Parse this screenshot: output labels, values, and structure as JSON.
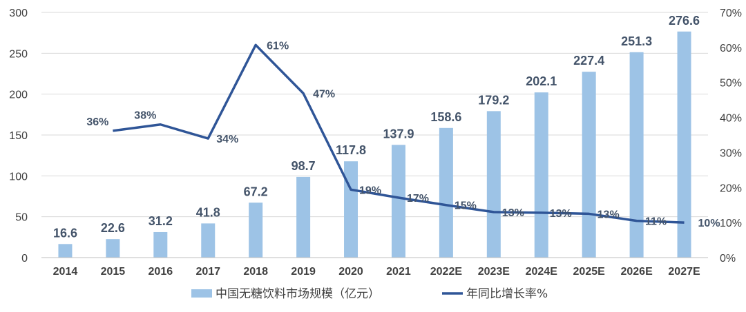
{
  "chart_data": {
    "type": "bar+line",
    "categories": [
      "2014",
      "2015",
      "2016",
      "2017",
      "2018",
      "2019",
      "2020",
      "2021",
      "2022E",
      "2023E",
      "2024E",
      "2025E",
      "2026E",
      "2027E"
    ],
    "series": [
      {
        "name": "中国无糖饮料市场规模（亿元）",
        "type": "bar",
        "axis": "left",
        "values": [
          16.6,
          22.6,
          31.2,
          41.8,
          67.2,
          98.7,
          117.8,
          137.9,
          158.6,
          179.2,
          202.1,
          227.4,
          251.3,
          276.6
        ],
        "labels": [
          "16.6",
          "22.6",
          "31.2",
          "41.8",
          "67.2",
          "98.7",
          "117.8",
          "137.9",
          "158.6",
          "179.2",
          "202.1",
          "227.4",
          "251.3",
          "276.6"
        ],
        "color": "#9dc3e6"
      },
      {
        "name": "年同比增长率%",
        "type": "line",
        "axis": "right",
        "values": [
          null,
          36.2,
          38.0,
          34.0,
          60.7,
          46.9,
          19.4,
          17.1,
          15.0,
          13.0,
          12.8,
          12.5,
          10.5,
          10.0
        ],
        "labels": [
          null,
          "36%",
          "38%",
          "34%",
          "61%",
          "47%",
          "19%",
          "17%",
          "15%",
          "13%",
          "13%",
          "13%",
          "11%",
          "10%"
        ],
        "color": "#2f5597"
      }
    ],
    "y_left": {
      "min": 0,
      "max": 300,
      "ticks": [
        "0",
        "50",
        "100",
        "150",
        "200",
        "250",
        "300"
      ]
    },
    "y_right": {
      "min": 0,
      "max": 70,
      "ticks": [
        "0%",
        "10%",
        "20%",
        "30%",
        "40%",
        "50%",
        "60%",
        "70%"
      ]
    },
    "grid": true,
    "legend_position": "bottom"
  }
}
